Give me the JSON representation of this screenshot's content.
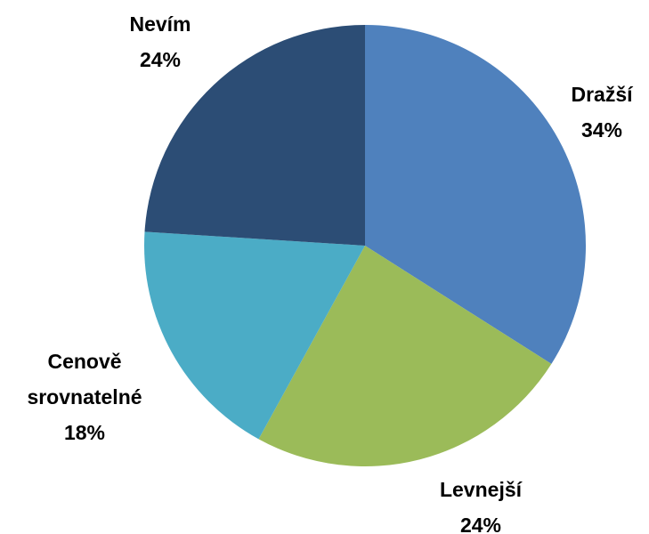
{
  "chart_data": {
    "type": "pie",
    "categories": [
      "Dražší",
      "Levnejší",
      "Cenově srovnatelné",
      "Nevím"
    ],
    "values": [
      34,
      24,
      18,
      24
    ],
    "value_labels": [
      "34%",
      "24%",
      "18%",
      "24%"
    ],
    "colors": [
      "#4f81bd",
      "#9bbb59",
      "#4bacc6",
      "#2c4d75"
    ]
  }
}
